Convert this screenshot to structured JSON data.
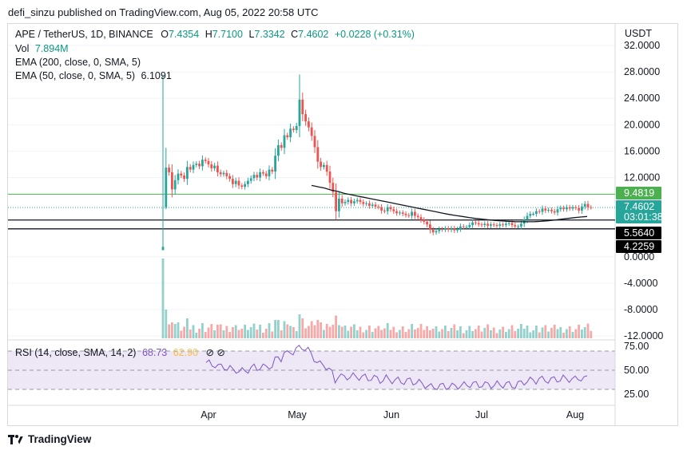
{
  "header": {
    "text": "defi_sinzu published on TradingView.com, Aug 05, 2022 20:58 UTC"
  },
  "legend": {
    "symbol": "APE / TetherUS, 1D, BINANCE",
    "o_label": "O",
    "o": "7.4354",
    "h_label": "H",
    "h": "7.7100",
    "l_label": "L",
    "l": "7.3342",
    "c_label": "C",
    "c": "7.4602",
    "change": "+0.0228 (+0.31%)",
    "vol_label": "Vol",
    "vol": "7.894M",
    "ema200": "EMA (200, close, 0, SMA, 5)",
    "ema50": "EMA (50, close, 0, SMA, 5)",
    "ema50_value": "6.1091",
    "rsi": "RSI (14, close, SMA, 14, 2)",
    "rsi_value": "68.73",
    "rsi_ma": "62.90"
  },
  "footer": {
    "brand": "TradingView"
  },
  "colors": {
    "up": "#26a69a",
    "down": "#ef5350",
    "ema50": "#131722",
    "hline_green": "#4caf50",
    "rsi_line": "#7e57c2",
    "rsi_band": "#ede7f6"
  },
  "chart_data": {
    "type": "candlestick",
    "currency_label": "USDT",
    "y_ticks": [
      "32.0000",
      "28.0000",
      "24.0000",
      "20.0000",
      "16.0000",
      "12.0000",
      "0.0000",
      "-4.0000",
      "-8.0000",
      "-12.0000"
    ],
    "y_tick_values": [
      32,
      28,
      24,
      20,
      16,
      12,
      0,
      -4,
      -8,
      -12
    ],
    "x_ticks": [
      "Apr",
      "May",
      "Jun",
      "Jul",
      "Aug"
    ],
    "price_labels": [
      {
        "text": "9.4819",
        "kind": "green"
      },
      {
        "text": "7.4602",
        "kind": "teal"
      },
      {
        "text": "03:01:38",
        "kind": "teal"
      },
      {
        "text": "5.5640",
        "kind": "black"
      },
      {
        "text": "4.2259",
        "kind": "black"
      }
    ],
    "horizontal_lines": [
      9.4819,
      5.564,
      4.2259
    ],
    "closes": [
      1.5,
      13.5,
      12.8,
      10.2,
      11.6,
      12.6,
      12.3,
      11.8,
      13.6,
      13.2,
      13.9,
      14.1,
      13.7,
      14.7,
      14.5,
      14.0,
      13.4,
      13.8,
      12.8,
      12.5,
      12.7,
      12.2,
      11.8,
      11.0,
      11.5,
      10.8,
      10.6,
      11.0,
      11.5,
      11.9,
      12.4,
      12.0,
      12.8,
      12.6,
      12.2,
      13.2,
      12.9,
      15.3,
      16.9,
      16.5,
      18.4,
      18.1,
      19.4,
      19.2,
      19.8,
      23.8,
      21.6,
      20.5,
      19.6,
      18.3,
      16.6,
      14.4,
      13.6,
      13.9,
      12.9,
      11.2,
      9.8,
      6.9,
      8.8,
      8.1,
      8.3,
      8.6,
      8.1,
      8.4,
      8.6,
      8.3,
      8.0,
      8.1,
      7.7,
      7.9,
      7.6,
      7.5,
      7.0,
      6.9,
      7.5,
      7.2,
      6.9,
      6.6,
      6.7,
      6.5,
      6.3,
      6.2,
      6.8,
      6.2,
      6.0,
      5.6,
      5.3,
      4.9,
      4.1,
      3.7,
      3.9,
      4.2,
      4.1,
      4.3,
      4.1,
      4.3,
      4.0,
      4.2,
      4.6,
      4.5,
      4.5,
      4.8,
      5.2,
      5.1,
      4.9,
      4.8,
      5.0,
      4.7,
      4.9,
      4.8,
      4.7,
      4.9,
      4.8,
      5.0,
      5.1,
      4.8,
      4.6,
      4.6,
      5.0,
      5.6,
      6.2,
      6.5,
      6.5,
      6.9,
      6.8,
      7.3,
      7.0,
      7.1,
      6.9,
      6.7,
      7.2,
      7.4,
      7.2,
      7.5,
      7.3,
      7.5,
      7.4,
      7.0,
      7.6,
      8.0,
      7.5,
      7.46
    ],
    "ema50": [
      10.8,
      10.6,
      10.4,
      10.1,
      9.9,
      9.6,
      9.4,
      9.2,
      9.0,
      8.8,
      8.6,
      8.4,
      8.2,
      8.0,
      7.8,
      7.6,
      7.4,
      7.2,
      7.0,
      6.8,
      6.6,
      6.4,
      6.25,
      6.1,
      5.95,
      5.8,
      5.7,
      5.6,
      5.5,
      5.42,
      5.36,
      5.32,
      5.3,
      5.3,
      5.32,
      5.36,
      5.45,
      5.55,
      5.68,
      5.8,
      5.92,
      6.02,
      6.1
    ]
  }
}
